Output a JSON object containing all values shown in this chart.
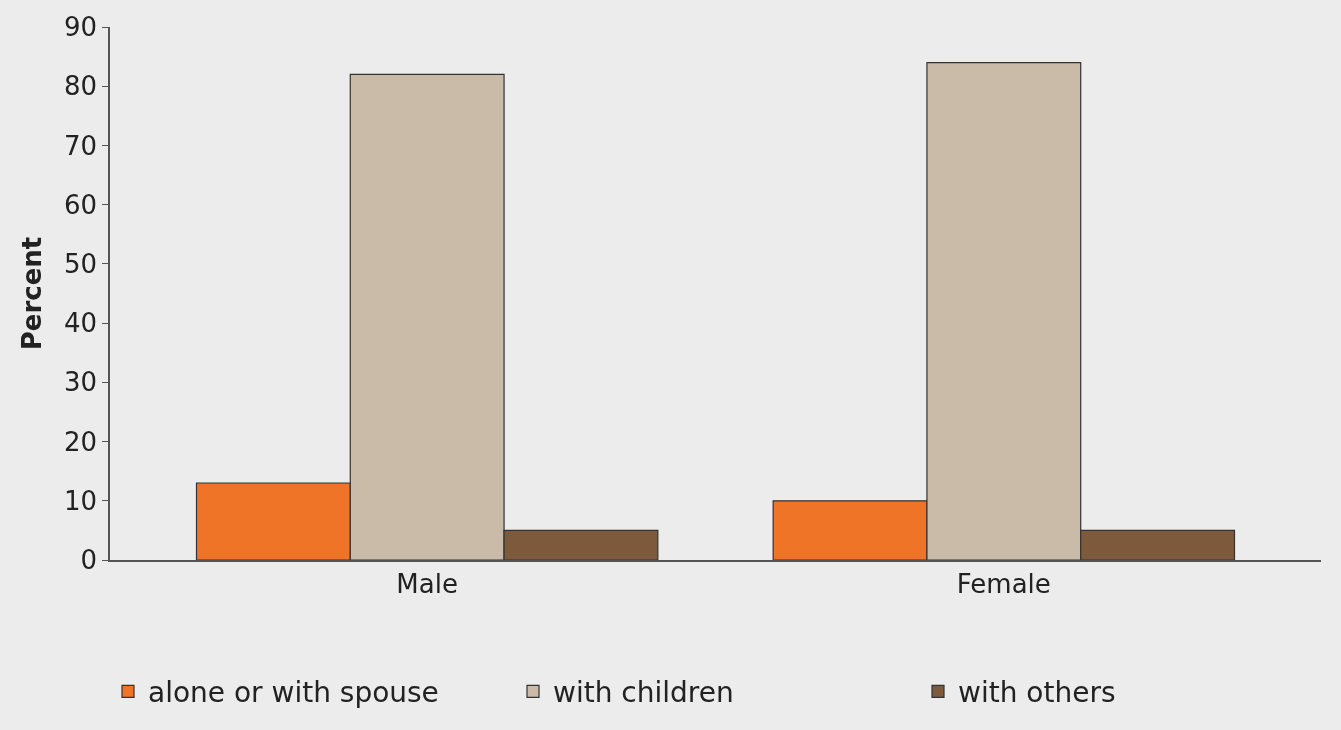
{
  "chart_data": {
    "type": "bar",
    "ylabel": "Percent",
    "categories": [
      "Male",
      "Female"
    ],
    "series": [
      {
        "name": "alone or with spouse",
        "color": "#f07427",
        "values": [
          13,
          10
        ]
      },
      {
        "name": "with children",
        "color": "#c9bba8",
        "values": [
          82,
          84
        ]
      },
      {
        "name": "with others",
        "color": "#7d5a3c",
        "values": [
          5,
          5
        ]
      }
    ],
    "ylim": [
      0,
      90
    ],
    "yticks": [
      0,
      10,
      20,
      30,
      40,
      50,
      60,
      70,
      80,
      90
    ],
    "grid": false,
    "legend": "bottom"
  }
}
